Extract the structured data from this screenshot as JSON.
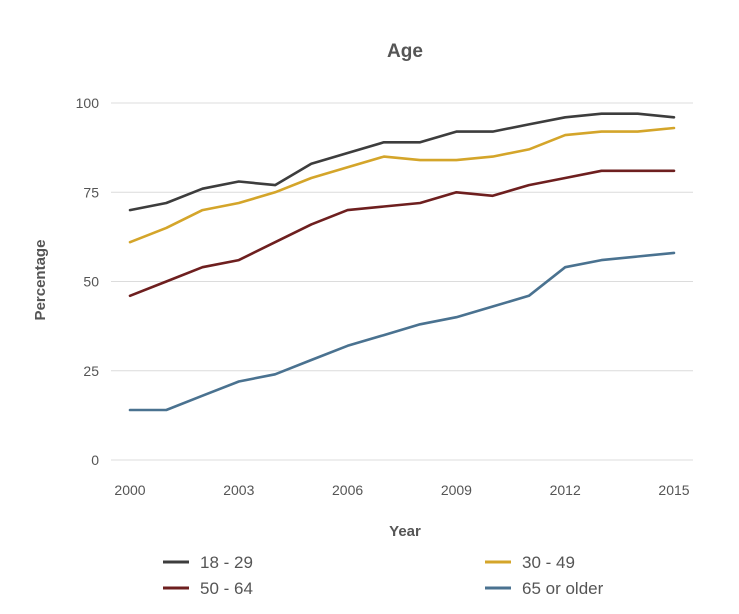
{
  "chart_data": {
    "type": "line",
    "title": "Age",
    "xlabel": "Year",
    "ylabel": "Percentage",
    "xlim": [
      2000,
      2015
    ],
    "ylim": [
      0,
      100
    ],
    "x_ticks": [
      "2000",
      "2003",
      "2006",
      "2009",
      "2012",
      "2015"
    ],
    "y_ticks": [
      "0",
      "25",
      "50",
      "75",
      "100"
    ],
    "grid": "horizontal",
    "legend_position": "bottom",
    "x": [
      2000,
      2001,
      2002,
      2003,
      2004,
      2005,
      2006,
      2007,
      2008,
      2009,
      2010,
      2011,
      2012,
      2013,
      2014,
      2015
    ],
    "series": [
      {
        "name": "18 - 29",
        "color": "#3d3d3d",
        "values": [
          70,
          72,
          76,
          78,
          77,
          83,
          86,
          89,
          89,
          92,
          92,
          94,
          96,
          97,
          97,
          96
        ]
      },
      {
        "name": "30 - 49",
        "color": "#d4a52a",
        "values": [
          61,
          65,
          70,
          72,
          75,
          79,
          82,
          85,
          84,
          84,
          85,
          87,
          91,
          92,
          92,
          93
        ]
      },
      {
        "name": "50 - 64",
        "color": "#6e1f1f",
        "values": [
          46,
          50,
          54,
          56,
          61,
          66,
          70,
          71,
          72,
          75,
          74,
          77,
          79,
          81,
          81,
          81
        ]
      },
      {
        "name": "65 or older",
        "color": "#4a7290",
        "values": [
          14,
          14,
          18,
          22,
          24,
          28,
          32,
          35,
          38,
          40,
          43,
          46,
          54,
          56,
          57,
          58
        ]
      }
    ]
  }
}
